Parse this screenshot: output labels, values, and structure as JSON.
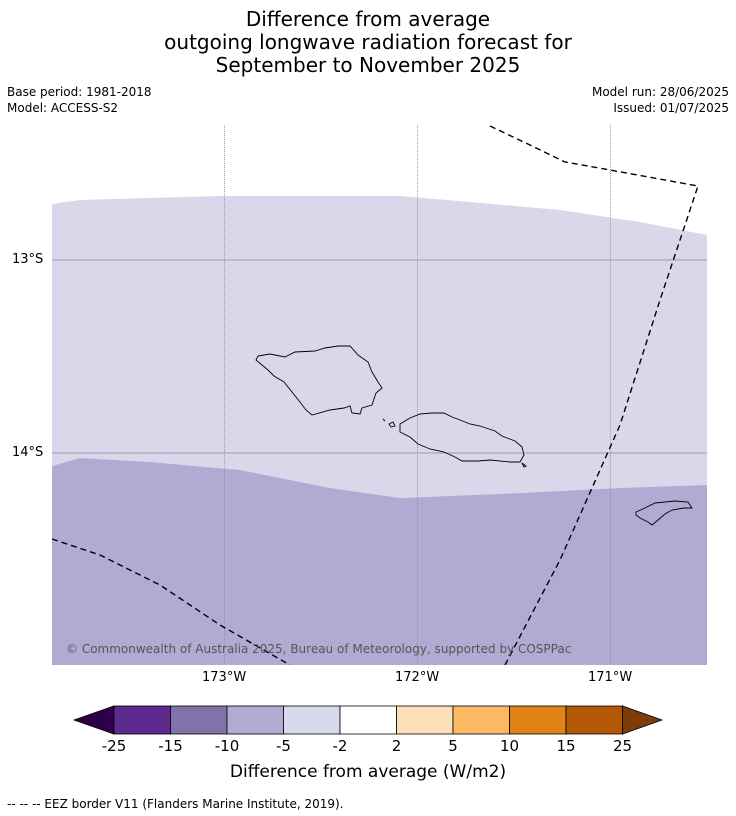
{
  "title": {
    "line1": "Difference from average",
    "line2": "outgoing longwave radiation forecast for",
    "line3": "September to November 2025"
  },
  "meta": {
    "base_period": "Base period: 1981-2018",
    "model": "Model: ACCESS-S2",
    "model_run": "Model run: 28/06/2025",
    "issued": "Issued: 01/07/2025"
  },
  "map": {
    "lat_labels": [
      "13°S",
      "14°S"
    ],
    "lon_labels": [
      "173°W",
      "172°W",
      "171°W"
    ],
    "copyright": "© Commonwealth of Australia 2025, Bureau of Meteorology, supported by COSPPac",
    "colors": {
      "band_light": "#d8d8ea",
      "band_medium": "#b1abd3"
    }
  },
  "colorbar": {
    "ticks": [
      "-25",
      "-15",
      "-10",
      "-5",
      "-2",
      "2",
      "5",
      "10",
      "15",
      "25"
    ],
    "colors": [
      "#2d004b",
      "#5e2a8f",
      "#8073ac",
      "#b2abd2",
      "#d8daeb",
      "#ffffff",
      "#fee0b6",
      "#fdb863",
      "#e08214",
      "#b35806",
      "#7f3b08"
    ],
    "label": "Difference from average (W/m2)"
  },
  "footer": "--  --  -- EEZ border V11 (Flanders Marine Institute, 2019)."
}
